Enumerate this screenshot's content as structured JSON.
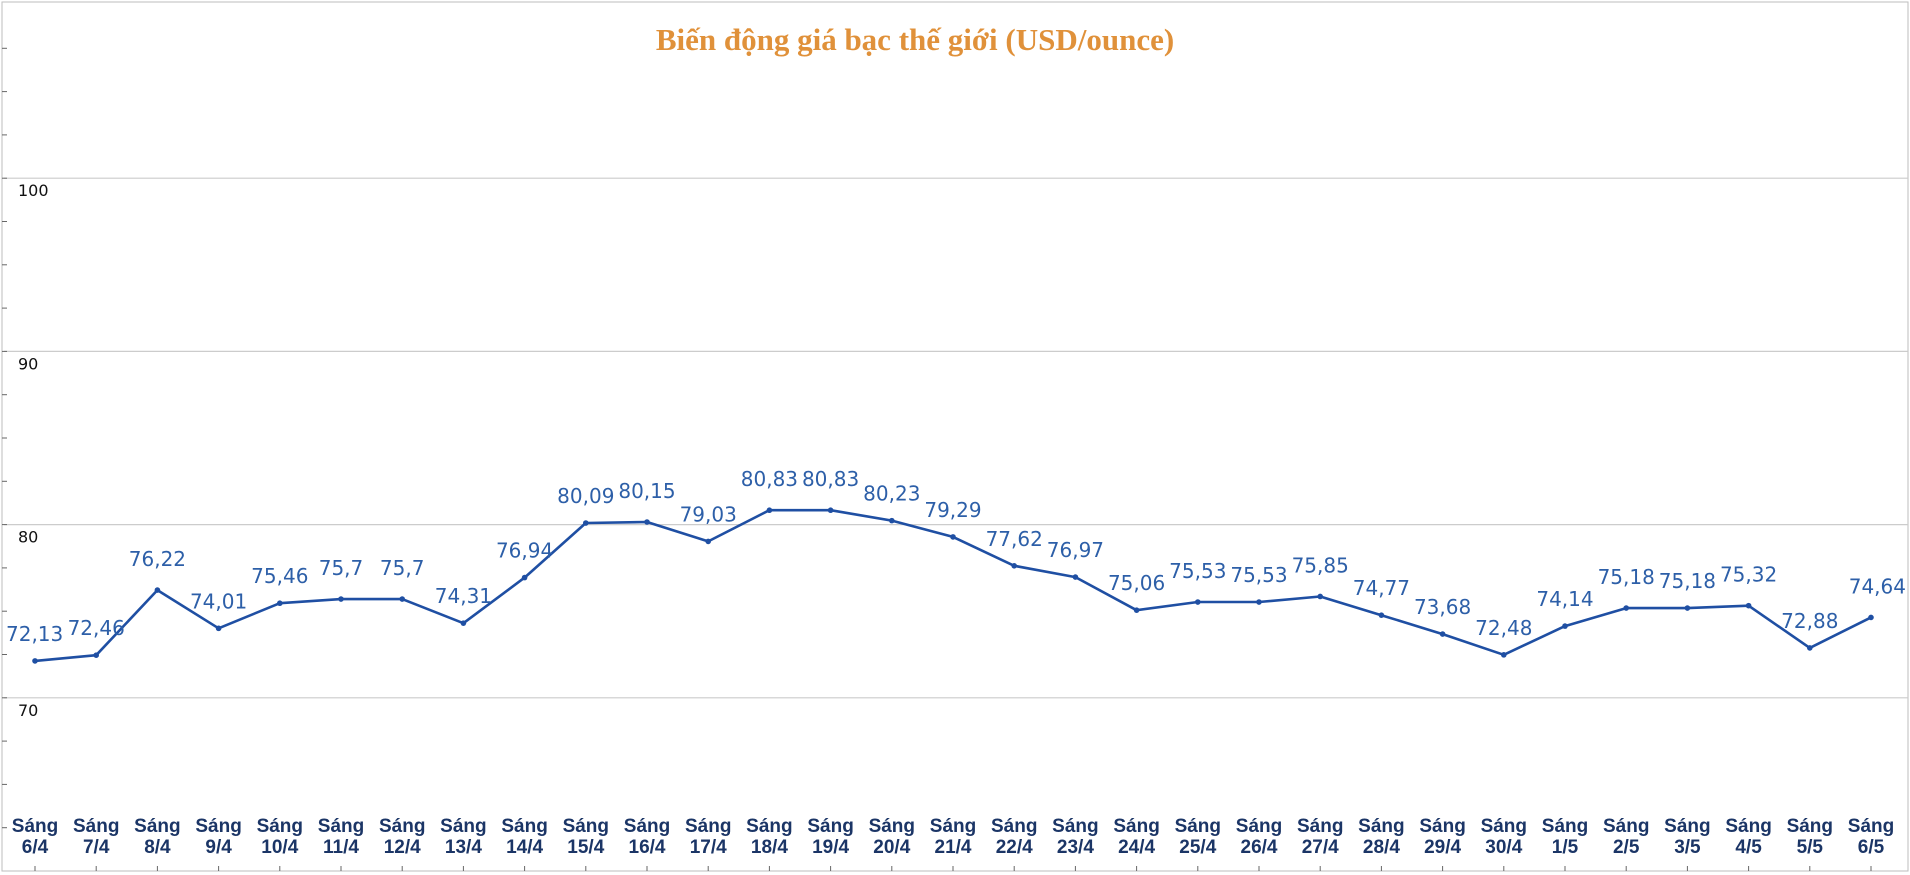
{
  "chart_data": {
    "type": "line",
    "title": "Biến động giá bạc thế giới (USD/ounce)",
    "categories": [
      [
        "Sáng",
        "6/4"
      ],
      [
        "Sáng",
        "7/4"
      ],
      [
        "Sáng",
        "8/4"
      ],
      [
        "Sáng",
        "9/4"
      ],
      [
        "Sáng",
        "10/4"
      ],
      [
        "Sáng",
        "11/4"
      ],
      [
        "Sáng",
        "12/4"
      ],
      [
        "Sáng",
        "13/4"
      ],
      [
        "Sáng",
        "14/4"
      ],
      [
        "Sáng",
        "15/4"
      ],
      [
        "Sáng",
        "16/4"
      ],
      [
        "Sáng",
        "17/4"
      ],
      [
        "Sáng",
        "18/4"
      ],
      [
        "Sáng",
        "19/4"
      ],
      [
        "Sáng",
        "20/4"
      ],
      [
        "Sáng",
        "21/4"
      ],
      [
        "Sáng",
        "22/4"
      ],
      [
        "Sáng",
        "23/4"
      ],
      [
        "Sáng",
        "24/4"
      ],
      [
        "Sáng",
        "25/4"
      ],
      [
        "Sáng",
        "26/4"
      ],
      [
        "Sáng",
        "27/4"
      ],
      [
        "Sáng",
        "28/4"
      ],
      [
        "Sáng",
        "29/4"
      ],
      [
        "Sáng",
        "30/4"
      ],
      [
        "Sáng",
        "1/5"
      ],
      [
        "Sáng",
        "2/5"
      ],
      [
        "Sáng",
        "3/5"
      ],
      [
        "Sáng",
        "4/5"
      ],
      [
        "Sáng",
        "5/5"
      ],
      [
        "Sáng",
        "6/5"
      ]
    ],
    "values": [
      72.13,
      72.46,
      76.22,
      74.01,
      75.46,
      75.7,
      75.7,
      74.31,
      76.94,
      80.09,
      80.15,
      79.03,
      80.83,
      80.83,
      80.23,
      79.29,
      77.62,
      76.97,
      75.06,
      75.53,
      75.53,
      75.85,
      74.77,
      73.68,
      72.48,
      74.14,
      75.18,
      75.18,
      75.32,
      72.88,
      74.64
    ],
    "value_labels": [
      "72,13",
      "72,46",
      "76,22",
      "74,01",
      "75,46",
      "75,7",
      "75,7",
      "74,31",
      "76,94",
      "80,09",
      "80,15",
      "79,03",
      "80,83",
      "80,83",
      "80,23",
      "79,29",
      "77,62",
      "76,97",
      "75,06",
      "75,53",
      "75,53",
      "75,85",
      "74,77",
      "73,68",
      "72,48",
      "74,14",
      "75,18",
      "75,18",
      "75,32",
      "72,88",
      "74,64"
    ],
    "ylim": [
      60,
      110
    ],
    "yticks": [
      70,
      80,
      90,
      100
    ],
    "grid": true,
    "legend": "none",
    "colors": {
      "line": "#1f4fa3",
      "label": "#2d5fa8",
      "xlabel": "#1b3566",
      "title": "#e0913a",
      "grid": "#cccccc"
    }
  }
}
